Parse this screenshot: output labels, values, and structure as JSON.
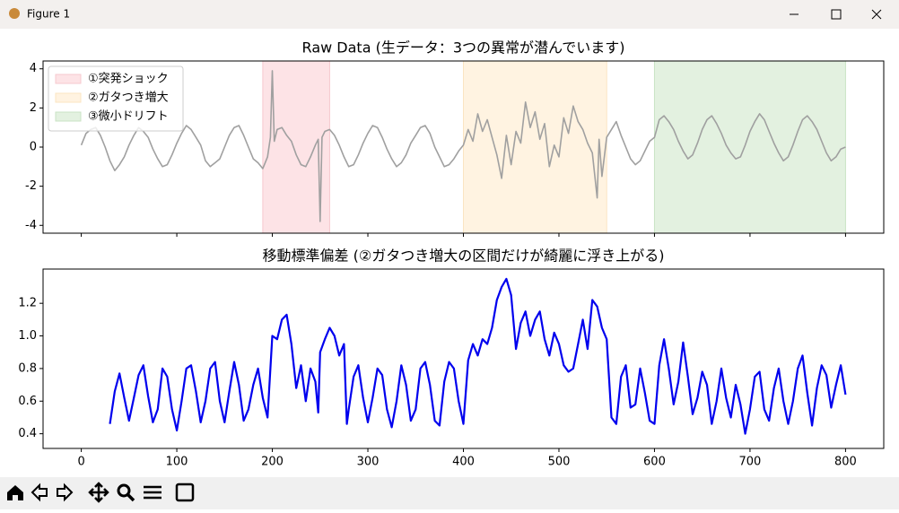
{
  "window": {
    "title": "Figure 1"
  },
  "chart_data": [
    {
      "type": "line",
      "title": "Raw Data (生データ：3つの異常が潜んでいます)",
      "xlim": [
        -40,
        840
      ],
      "ylim": [
        -4.4,
        4.4
      ],
      "xticks": [
        0,
        100,
        200,
        300,
        400,
        500,
        600,
        700,
        800
      ],
      "yticks": [
        -4,
        -2,
        0,
        2,
        4
      ],
      "legend": "upper left",
      "spans": [
        {
          "name": "①突発ショック",
          "color": "#fde3e6",
          "edge": "#f6c9cf",
          "x": [
            190,
            260
          ]
        },
        {
          "name": "②ガタつき増大",
          "color": "#fff3e1",
          "edge": "#fbe4c2",
          "x": [
            400,
            550
          ]
        },
        {
          "name": "③微小ドリフト",
          "color": "#e3f1e0",
          "edge": "#c9e3c4",
          "x": [
            600,
            800
          ]
        }
      ],
      "x": [
        0,
        5,
        10,
        15,
        20,
        25,
        30,
        35,
        40,
        45,
        50,
        55,
        60,
        65,
        70,
        75,
        80,
        85,
        90,
        95,
        100,
        105,
        110,
        115,
        120,
        125,
        130,
        135,
        140,
        145,
        150,
        155,
        160,
        165,
        170,
        175,
        180,
        185,
        190,
        195,
        198,
        200,
        202,
        205,
        210,
        215,
        220,
        225,
        230,
        235,
        240,
        245,
        248,
        250,
        252,
        255,
        260,
        265,
        270,
        275,
        280,
        285,
        290,
        295,
        300,
        305,
        310,
        315,
        320,
        325,
        330,
        335,
        340,
        345,
        350,
        355,
        360,
        365,
        370,
        375,
        380,
        385,
        390,
        395,
        400,
        405,
        410,
        415,
        420,
        425,
        430,
        435,
        440,
        445,
        450,
        455,
        460,
        465,
        470,
        475,
        480,
        485,
        490,
        495,
        500,
        505,
        510,
        515,
        520,
        525,
        530,
        535,
        540,
        542,
        545,
        550,
        555,
        560,
        565,
        570,
        575,
        580,
        585,
        590,
        595,
        600,
        605,
        610,
        615,
        620,
        625,
        630,
        635,
        640,
        645,
        650,
        655,
        660,
        665,
        670,
        675,
        680,
        685,
        690,
        695,
        700,
        705,
        710,
        715,
        720,
        725,
        730,
        735,
        740,
        745,
        750,
        755,
        760,
        765,
        770,
        775,
        780,
        785,
        790,
        795,
        800
      ],
      "series": [
        {
          "color": "#a0a0a0",
          "values": [
            0.1,
            0.7,
            0.9,
            1.0,
            0.6,
            0.0,
            -0.7,
            -1.2,
            -0.9,
            -0.5,
            0.1,
            0.6,
            1.0,
            0.8,
            0.5,
            -0.1,
            -0.6,
            -1.0,
            -0.9,
            -0.4,
            0.2,
            0.7,
            1.1,
            0.9,
            0.5,
            0.1,
            -0.7,
            -1.0,
            -0.8,
            -0.6,
            0.0,
            0.6,
            1.0,
            1.1,
            0.6,
            0.0,
            -0.6,
            -0.8,
            -1.1,
            -0.5,
            0.5,
            3.9,
            0.3,
            0.9,
            1.0,
            0.6,
            0.3,
            -0.4,
            -0.9,
            -1.0,
            -0.5,
            0.1,
            0.4,
            -3.8,
            0.5,
            0.8,
            0.9,
            0.6,
            0.1,
            -0.5,
            -1.0,
            -0.9,
            -0.4,
            0.2,
            0.7,
            1.1,
            1.0,
            0.5,
            -0.1,
            -0.6,
            -1.0,
            -0.8,
            -0.4,
            0.2,
            0.6,
            1.0,
            1.1,
            0.7,
            0.0,
            -0.5,
            -1.0,
            -0.9,
            -0.6,
            -0.2,
            0.1,
            0.9,
            0.3,
            1.7,
            0.8,
            1.4,
            0.5,
            -0.4,
            -1.6,
            0.6,
            -0.9,
            0.8,
            0.2,
            2.3,
            1.0,
            1.8,
            0.4,
            1.2,
            -1.0,
            0.1,
            -0.5,
            1.5,
            0.7,
            2.1,
            1.3,
            0.9,
            0.2,
            -0.3,
            -2.6,
            0.4,
            -1.5,
            0.5,
            0.9,
            1.3,
            0.6,
            0.0,
            -0.6,
            -0.9,
            -0.7,
            -0.2,
            0.3,
            0.5,
            1.4,
            1.6,
            1.3,
            0.9,
            0.3,
            -0.2,
            -0.6,
            -0.4,
            0.2,
            0.9,
            1.4,
            1.6,
            1.2,
            0.7,
            0.1,
            -0.3,
            -0.6,
            -0.5,
            0.1,
            0.8,
            1.3,
            1.7,
            1.4,
            0.8,
            0.2,
            -0.3,
            -0.7,
            -0.5,
            0.1,
            0.8,
            1.4,
            1.6,
            1.3,
            0.9,
            0.3,
            -0.3,
            -0.7,
            -0.5,
            -0.1,
            0.0
          ]
        }
      ]
    },
    {
      "type": "line",
      "title": "移動標準偏差 (②ガタつき増大の区間だけが綺麗に浮き上がる)",
      "xlim": [
        -40,
        840
      ],
      "ylim": [
        0.31,
        1.41
      ],
      "xticks": [
        0,
        100,
        200,
        300,
        400,
        500,
        600,
        700,
        800
      ],
      "yticks": [
        0.4,
        0.6,
        0.8,
        {
          "value": 1.0,
          "label": "1.0"
        },
        1.2
      ],
      "x": [
        30,
        35,
        40,
        45,
        50,
        55,
        60,
        65,
        70,
        75,
        80,
        85,
        90,
        95,
        100,
        105,
        110,
        115,
        120,
        125,
        130,
        135,
        140,
        145,
        150,
        155,
        160,
        165,
        170,
        175,
        180,
        185,
        190,
        195,
        200,
        205,
        210,
        215,
        220,
        225,
        230,
        235,
        240,
        245,
        248,
        250,
        255,
        260,
        265,
        270,
        275,
        278,
        280,
        285,
        290,
        295,
        300,
        305,
        310,
        315,
        320,
        325,
        330,
        335,
        340,
        345,
        350,
        355,
        360,
        365,
        370,
        375,
        380,
        385,
        390,
        395,
        400,
        405,
        410,
        415,
        420,
        425,
        430,
        435,
        440,
        445,
        450,
        455,
        460,
        465,
        470,
        475,
        480,
        485,
        490,
        495,
        500,
        505,
        510,
        515,
        520,
        525,
        530,
        535,
        540,
        545,
        550,
        555,
        560,
        565,
        570,
        575,
        580,
        585,
        590,
        595,
        600,
        605,
        610,
        615,
        620,
        625,
        630,
        635,
        640,
        645,
        650,
        655,
        660,
        665,
        670,
        675,
        680,
        685,
        690,
        695,
        700,
        705,
        710,
        715,
        720,
        725,
        730,
        735,
        740,
        745,
        750,
        755,
        760,
        765,
        770,
        775,
        780,
        785,
        790,
        795,
        800
      ],
      "series": [
        {
          "color": "#0000ee",
          "values": [
            0.46,
            0.66,
            0.77,
            0.62,
            0.48,
            0.62,
            0.76,
            0.82,
            0.63,
            0.47,
            0.55,
            0.8,
            0.75,
            0.55,
            0.42,
            0.6,
            0.8,
            0.82,
            0.66,
            0.47,
            0.6,
            0.8,
            0.84,
            0.6,
            0.47,
            0.66,
            0.84,
            0.7,
            0.48,
            0.55,
            0.7,
            0.8,
            0.62,
            0.5,
            1.0,
            0.98,
            1.1,
            1.13,
            0.95,
            0.68,
            0.82,
            0.6,
            0.8,
            0.72,
            0.53,
            0.9,
            0.98,
            1.05,
            1.0,
            0.88,
            0.95,
            0.46,
            0.55,
            0.75,
            0.82,
            0.62,
            0.47,
            0.62,
            0.8,
            0.76,
            0.55,
            0.44,
            0.6,
            0.82,
            0.7,
            0.48,
            0.55,
            0.8,
            0.84,
            0.7,
            0.48,
            0.45,
            0.72,
            0.84,
            0.8,
            0.6,
            0.46,
            0.85,
            0.95,
            0.88,
            0.98,
            0.95,
            1.05,
            1.22,
            1.3,
            1.35,
            1.25,
            0.92,
            1.08,
            1.15,
            1.0,
            1.1,
            1.15,
            0.98,
            0.88,
            1.02,
            0.95,
            0.82,
            0.78,
            0.8,
            0.95,
            1.1,
            0.92,
            1.22,
            1.18,
            1.05,
            0.98,
            0.5,
            0.46,
            0.75,
            0.82,
            0.56,
            0.58,
            0.8,
            0.65,
            0.48,
            0.46,
            0.82,
            0.98,
            0.8,
            0.58,
            0.72,
            0.96,
            0.75,
            0.52,
            0.62,
            0.78,
            0.7,
            0.46,
            0.6,
            0.8,
            0.62,
            0.5,
            0.7,
            0.58,
            0.4,
            0.55,
            0.75,
            0.78,
            0.55,
            0.48,
            0.68,
            0.8,
            0.6,
            0.46,
            0.6,
            0.8,
            0.88,
            0.65,
            0.45,
            0.68,
            0.82,
            0.76,
            0.56,
            0.7,
            0.82,
            0.64
          ]
        }
      ]
    }
  ]
}
